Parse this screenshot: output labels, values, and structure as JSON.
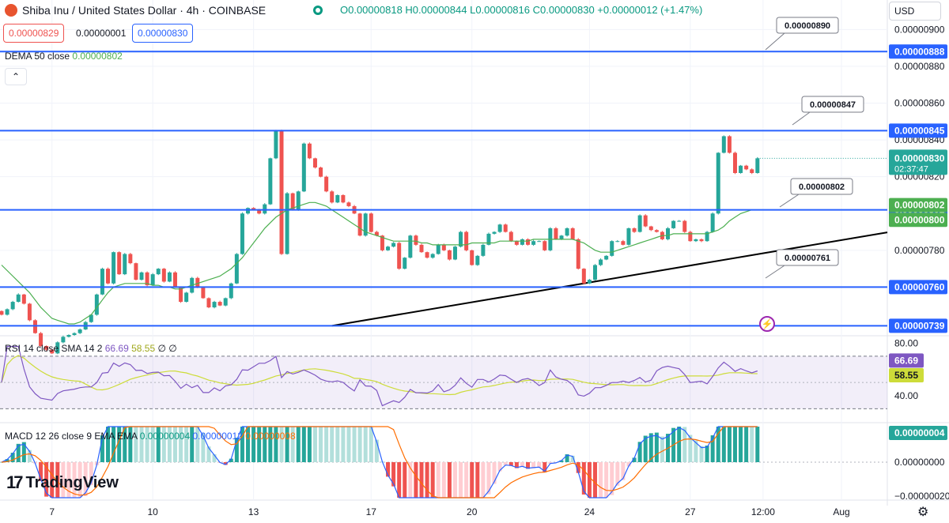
{
  "header": {
    "symbol": "Shiba Inu / United States Dollar · 4h · COINBASE",
    "ohlc": "O0.00000818 H0.00000844 L0.00000816 C0.00000830 +0.00000012 (+1.47%)",
    "sell_price": "0.00000829",
    "spread": "0.00000001",
    "buy_price": "0.00000830",
    "currency": "USD",
    "collapse_glyph": "⌃"
  },
  "indicators": {
    "dema_name": "DEMA 50 close",
    "dema_value": "0.00000802",
    "rsi_name": "RSI 14 close SMA 14 2",
    "rsi_value": "66.69",
    "rsi_sma_value": "58.55",
    "rsi_extra": "∅ ∅",
    "macd_name": "MACD 12 26 close 9 EMA EMA",
    "macd_value": "0.00000004",
    "macd_signal_value": "0.00000012",
    "macd_hist_value": "0.00000008"
  },
  "branding": {
    "logo_mark": "17",
    "logo_text": "TradingView",
    "settings_icon": "gear-icon",
    "bolt_icon": "lightning-icon",
    "bolt_glyph": "⚡",
    "gear_glyph": "⚙"
  },
  "colors": {
    "up": "#26a69a",
    "down": "#ef5350",
    "level_line": "#2962ff",
    "dema": "#4caf50",
    "rsi": "#7e57c2",
    "rsi_sma": "#cddc39",
    "macd": "#2962ff",
    "signal": "#ff6d00"
  },
  "chart_data": {
    "type": "candlestick",
    "title": "Shiba Inu / United States Dollar · 4h · COINBASE",
    "y_axis_ticks": [
      "0.00000900",
      "0.00000880",
      "0.00000860",
      "0.00000840",
      "0.00000820",
      "0.00000780"
    ],
    "x_axis_ticks": [
      "7",
      "10",
      "13",
      "17",
      "20",
      "24",
      "27",
      "12:00",
      "Aug"
    ],
    "ylim": [
      7.34e-06,
      9.04e-06
    ],
    "horizontal_levels": [
      {
        "value": 8.88e-06,
        "label": "0.00000888"
      },
      {
        "value": 8.45e-06,
        "label": "0.00000845"
      },
      {
        "value": 8.02e-06,
        "label": "0.00000802"
      },
      {
        "value": 7.6e-06,
        "label": "0.00000760"
      },
      {
        "value": 7.39e-06,
        "label": "0.00000739"
      }
    ],
    "callouts": [
      "0.00000890",
      "0.00000847",
      "0.00000802",
      "0.00000761"
    ],
    "axis_badges": [
      {
        "label": "0.00000800",
        "value": 8e-06
      },
      {
        "label": "0.00000802",
        "value": 8.02e-06
      }
    ],
    "current_price": {
      "label": "0.00000830",
      "countdown": "02:37:47",
      "value": 8.3e-06
    },
    "closes": [
      7.45e-06,
      7.48e-06,
      7.52e-06,
      7.56e-06,
      7.51e-06,
      7.42e-06,
      7.35e-06,
      7.28e-06,
      7.26e-06,
      7.24e-06,
      7.3e-06,
      7.33e-06,
      7.34e-06,
      7.35e-06,
      7.37e-06,
      7.41e-06,
      7.45e-06,
      7.56e-06,
      7.7e-06,
      7.62e-06,
      7.79e-06,
      7.67e-06,
      7.78e-06,
      7.73e-06,
      7.64e-06,
      7.68e-06,
      7.61e-06,
      7.67e-06,
      7.7e-06,
      7.63e-06,
      7.68e-06,
      7.6e-06,
      7.52e-06,
      7.57e-06,
      7.65e-06,
      7.6e-06,
      7.54e-06,
      7.49e-06,
      7.52e-06,
      7.5e-06,
      7.54e-06,
      7.62e-06,
      7.78e-06,
      8e-06,
      8.03e-06,
      8.02e-06,
      8e-06,
      8.05e-06,
      8.3e-06,
      8.45e-06,
      7.78e-06,
      8.11e-06,
      8.02e-06,
      8.12e-06,
      8.38e-06,
      8.3e-06,
      8.25e-06,
      8.2e-06,
      8.12e-06,
      8.06e-06,
      8.1e-06,
      8.06e-06,
      8.04e-06,
      8e-06,
      7.88e-06,
      8e-06,
      7.9e-06,
      7.88e-06,
      7.8e-06,
      7.82e-06,
      7.84e-06,
      7.7e-06,
      7.76e-06,
      7.88e-06,
      7.83e-06,
      7.79e-06,
      7.76e-06,
      7.78e-06,
      7.83e-06,
      7.8e-06,
      7.75e-06,
      7.82e-06,
      7.9e-06,
      7.8e-06,
      7.72e-06,
      7.77e-06,
      7.83e-06,
      7.89e-06,
      7.9e-06,
      7.94e-06,
      7.9e-06,
      7.85e-06,
      7.83e-06,
      7.86e-06,
      7.83e-06,
      7.85e-06,
      7.85e-06,
      7.8e-06,
      7.92e-06,
      7.86e-06,
      7.88e-06,
      7.92e-06,
      7.86e-06,
      7.7e-06,
      7.62e-06,
      7.64e-06,
      7.72e-06,
      7.75e-06,
      7.77e-06,
      7.85e-06,
      7.85e-06,
      7.83e-06,
      7.92e-06,
      7.9e-06,
      7.99e-06,
      7.93e-06,
      7.91e-06,
      7.9e-06,
      7.86e-06,
      7.92e-06,
      7.96e-06,
      7.96e-06,
      7.9e-06,
      7.85e-06,
      7.86e-06,
      7.85e-06,
      7.9e-06,
      8e-06,
      8.33e-06,
      8.42e-06,
      8.33e-06,
      8.22e-06,
      8.26e-06,
      8.24e-06,
      8.22e-06,
      8.3e-06
    ],
    "dema": [
      7.72e-06,
      7.69e-06,
      7.66e-06,
      7.63e-06,
      7.6e-06,
      7.57e-06,
      7.53e-06,
      7.49e-06,
      7.46e-06,
      7.43e-06,
      7.42e-06,
      7.41e-06,
      7.4e-06,
      7.4e-06,
      7.41e-06,
      7.43e-06,
      7.45e-06,
      7.49e-06,
      7.53e-06,
      7.57e-06,
      7.6e-06,
      7.61e-06,
      7.62e-06,
      7.62e-06,
      7.62e-06,
      7.62e-06,
      7.62e-06,
      7.61e-06,
      7.61e-06,
      7.6e-06,
      7.6e-06,
      7.59e-06,
      7.59e-06,
      7.6e-06,
      7.61e-06,
      7.62e-06,
      7.63e-06,
      7.64e-06,
      7.65e-06,
      7.66e-06,
      7.68e-06,
      7.7e-06,
      7.73e-06,
      7.76e-06,
      7.8e-06,
      7.84e-06,
      7.88e-06,
      7.92e-06,
      7.95e-06,
      7.98e-06,
      8e-06,
      8.02e-06,
      8.03e-06,
      8.04e-06,
      8.05e-06,
      8.06e-06,
      8.06e-06,
      8.05e-06,
      8.04e-06,
      8.02e-06,
      8e-06,
      7.98e-06,
      7.96e-06,
      7.94e-06,
      7.92e-06,
      7.9e-06,
      7.89e-06,
      7.88e-06,
      7.87e-06,
      7.86e-06,
      7.85e-06,
      7.85e-06,
      7.85e-06,
      7.85e-06,
      7.85e-06,
      7.84e-06,
      7.84e-06,
      7.83e-06,
      7.83e-06,
      7.83e-06,
      7.83e-06,
      7.83e-06,
      7.83e-06,
      7.83e-06,
      7.84e-06,
      7.84e-06,
      7.84e-06,
      7.84e-06,
      7.84e-06,
      7.85e-06,
      7.85e-06,
      7.85e-06,
      7.85e-06,
      7.85e-06,
      7.85e-06,
      7.86e-06,
      7.86e-06,
      7.86e-06,
      7.86e-06,
      7.86e-06,
      7.86e-06,
      7.86e-06,
      7.86e-06,
      7.85e-06,
      7.84e-06,
      7.82e-06,
      7.8e-06,
      7.79e-06,
      7.79e-06,
      7.79e-06,
      7.8e-06,
      7.81e-06,
      7.82e-06,
      7.83e-06,
      7.84e-06,
      7.85e-06,
      7.86e-06,
      7.87e-06,
      7.88e-06,
      7.88e-06,
      7.89e-06,
      7.89e-06,
      7.89e-06,
      7.89e-06,
      7.89e-06,
      7.89e-06,
      7.89e-06,
      7.9e-06,
      7.91e-06,
      7.93e-06,
      7.96e-06,
      7.98e-06,
      8e-06,
      8.01e-06,
      8.02e-06,
      8.02e-06
    ],
    "trendline": [
      {
        "x_index": 59,
        "value": 7.39e-06
      },
      {
        "x_index": 145,
        "value": 7.83e-06
      }
    ],
    "rsi": {
      "ylim": [
        20,
        85
      ],
      "tick_labels": [
        "80.00",
        "40.00"
      ],
      "band": [
        30,
        70
      ],
      "value_label": "66.69",
      "sma_label": "58.55"
    },
    "macd": {
      "tick_labels": [
        "0.00000000",
        "−0.00000020"
      ],
      "value_label": "0.00000004"
    }
  }
}
